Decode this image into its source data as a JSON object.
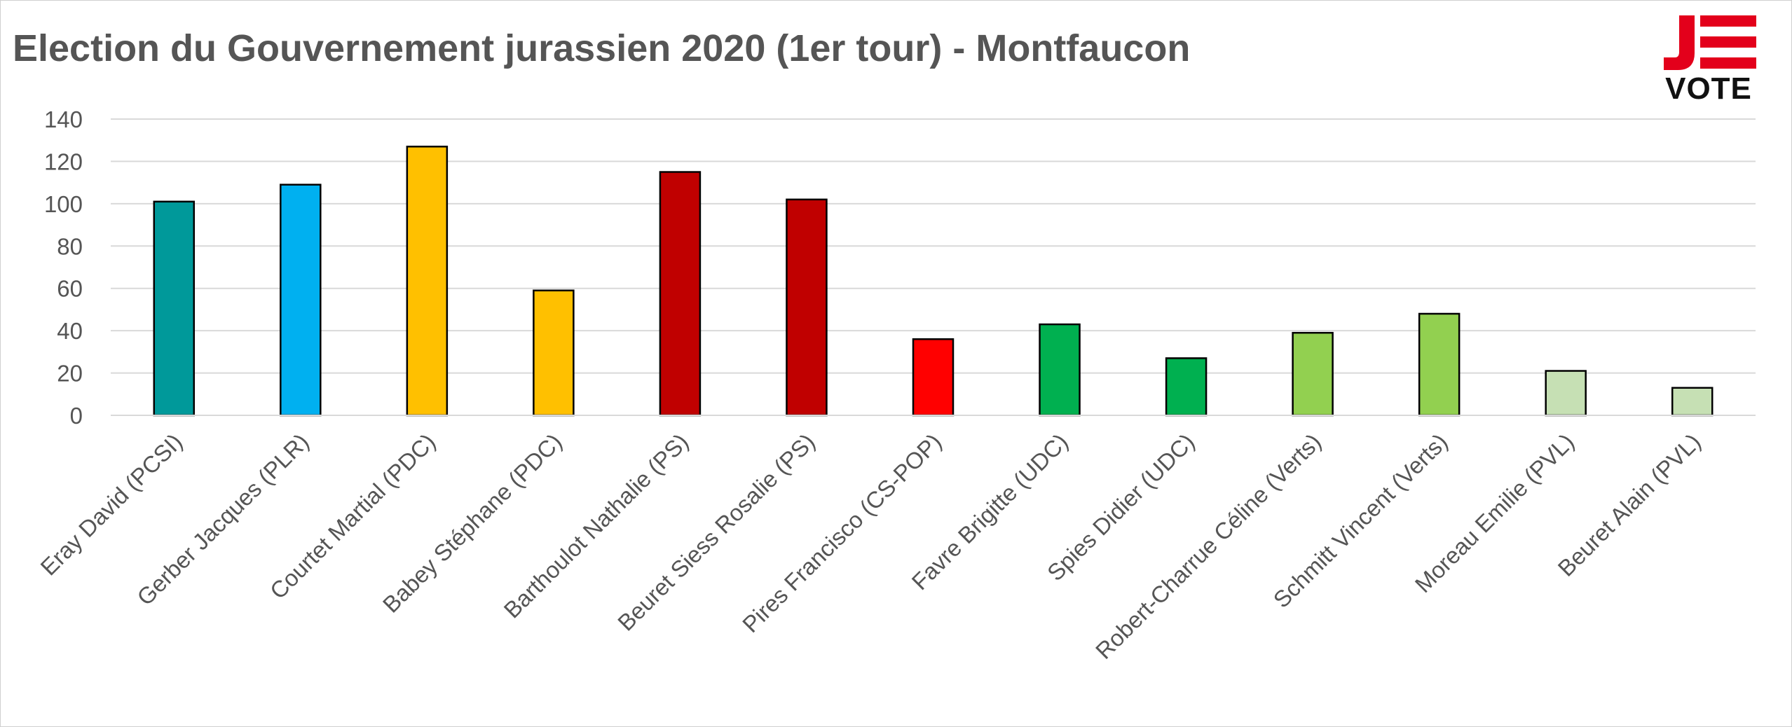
{
  "chart_data": {
    "type": "bar",
    "title": "Election du Gouvernement jurassien 2020 (1er tour) - Montfaucon",
    "xlabel": "",
    "ylabel": "",
    "ylim": [
      0,
      140
    ],
    "yticks": [
      "0",
      "20",
      "40",
      "60",
      "80",
      "100",
      "120",
      "140"
    ],
    "grid": true,
    "legend": "none",
    "categories": [
      "Eray David (PCSI)",
      "Gerber Jacques (PLR)",
      "Courtet Martial (PDC)",
      "Babey Stéphane (PDC)",
      "Barthoulot Nathalie (PS)",
      "Beuret Siess Rosalie (PS)",
      "Pires Francisco (CS-POP)",
      "Favre Brigitte (UDC)",
      "Spies Didier (UDC)",
      "Robert-Charrue Céline (Verts)",
      "Schmitt Vincent (Verts)",
      "Moreau Emilie (PVL)",
      "Beuret Alain (PVL)"
    ],
    "values": [
      101,
      109,
      127,
      59,
      115,
      102,
      36,
      43,
      27,
      39,
      48,
      21,
      13
    ],
    "colors": [
      "#00999a",
      "#00b0f0",
      "#ffc000",
      "#ffc000",
      "#c00000",
      "#c00000",
      "#ff0000",
      "#00b050",
      "#00b050",
      "#92d050",
      "#92d050",
      "#c6e0b4",
      "#c6e0b4"
    ]
  },
  "logo": {
    "text": "VOTE",
    "colors": {
      "red": "#e3001b",
      "dark": "#111111"
    }
  }
}
